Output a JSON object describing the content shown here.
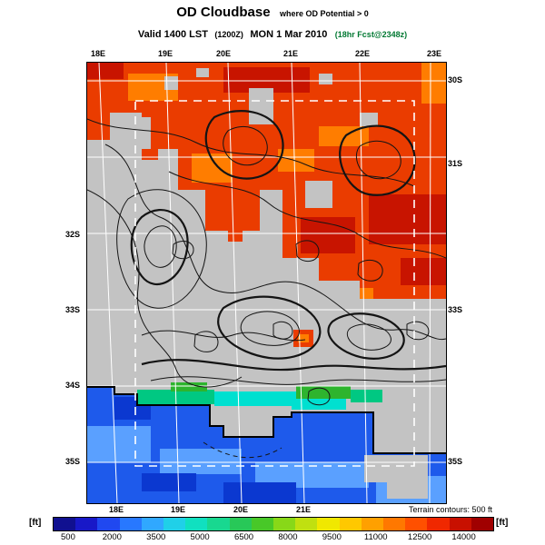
{
  "header": {
    "title_main": "OD Cloudbase",
    "title_sub": "where OD Potential > 0",
    "valid_prefix": "Valid 1400 LST",
    "valid_zulu": "(1200Z)",
    "valid_date": "MON 1 Mar 2010",
    "valid_fcst": "(18hr Fcst@2348z)"
  },
  "map": {
    "top_labels": [
      "18E",
      "19E",
      "20E",
      "21E",
      "22E",
      "23E"
    ],
    "bottom_labels": [
      "18E",
      "19E",
      "20E",
      "21E"
    ],
    "left_labels": [
      "32S",
      "33S",
      "34S",
      "35S"
    ],
    "right_labels": [
      "30S",
      "31S",
      "33S",
      "35S"
    ]
  },
  "palette": {
    "gray_land": "#C3C3C3",
    "red_main": "#EA3C00",
    "red_dark": "#C81400",
    "orange": "#FF7D00",
    "blue_sea": "#1E5AEB",
    "blue_light": "#5AA0FF",
    "blue_deep": "#0B38D0",
    "teal": "#00C882",
    "cyan": "#00E0D0",
    "green": "#2EB42E"
  },
  "footer": {
    "terrain_note": "Terrain contours: 500 ft",
    "unit_left": "[ft]",
    "unit_right": "[ft]"
  },
  "colorbar": {
    "ticks": [
      "500",
      "2000",
      "3500",
      "5000",
      "6500",
      "8000",
      "9500",
      "11000",
      "12500",
      "14000"
    ],
    "colors": [
      "#101090",
      "#1818C8",
      "#2048F0",
      "#2878FF",
      "#30A8FF",
      "#20D0E8",
      "#10E0C0",
      "#18D890",
      "#28C858",
      "#48C828",
      "#88D818",
      "#C0E010",
      "#F0E800",
      "#FFC800",
      "#FFA000",
      "#FF7800",
      "#FF5000",
      "#F02800",
      "#C81000",
      "#A00000"
    ]
  }
}
